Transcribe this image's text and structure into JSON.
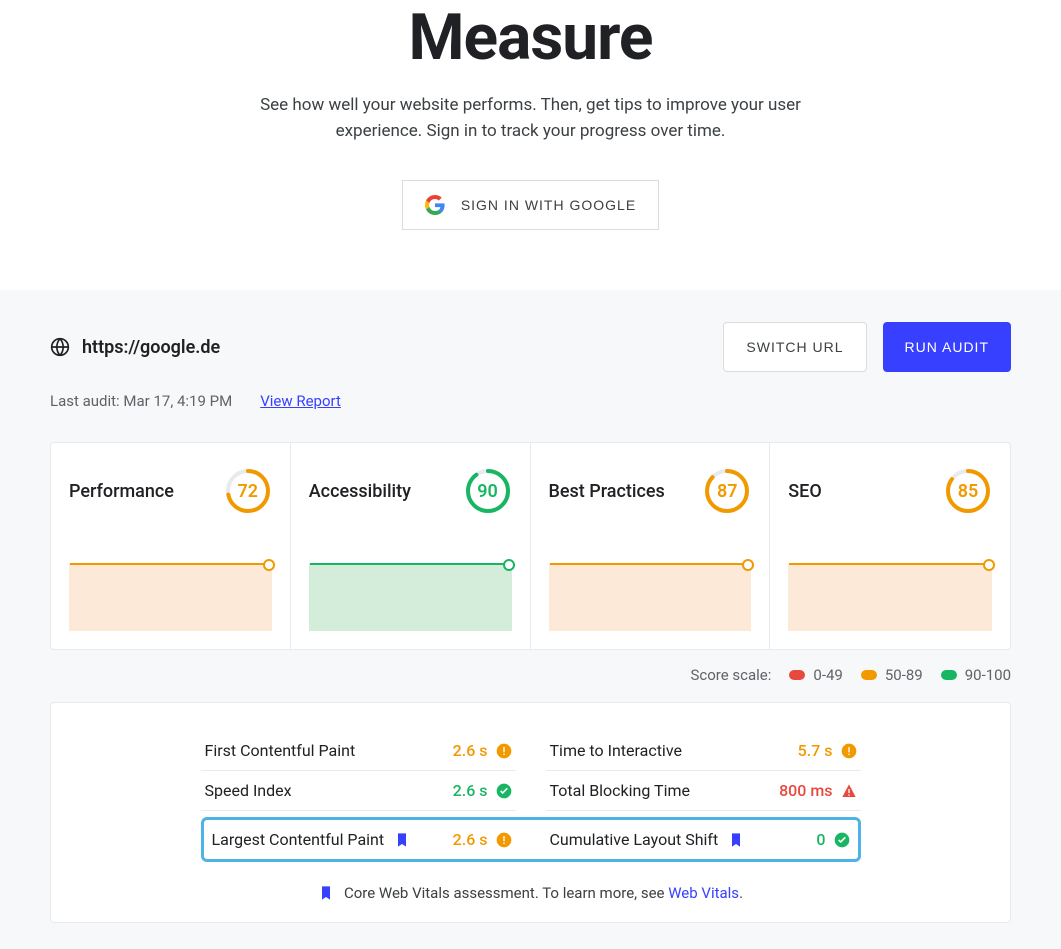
{
  "hero": {
    "title": "Measure",
    "subtitle": "See how well your website performs. Then, get tips to improve your user experience. Sign in to track your progress over time.",
    "signin_label": "SIGN IN WITH GOOGLE"
  },
  "audit": {
    "url": "https://google.de",
    "last_audit_label": "Last audit: Mar 17, 4:19 PM",
    "view_report_label": "View Report",
    "switch_url_label": "SWITCH URL",
    "run_audit_label": "RUN AUDIT"
  },
  "scores": [
    {
      "name": "Performance",
      "value": 72,
      "color": "#f29900",
      "spark": "orange"
    },
    {
      "name": "Accessibility",
      "value": 90,
      "color": "#18b663",
      "spark": "green"
    },
    {
      "name": "Best Practices",
      "value": 87,
      "color": "#f29900",
      "spark": "orange"
    },
    {
      "name": "SEO",
      "value": 85,
      "color": "#f29900",
      "spark": "orange"
    }
  ],
  "scale": {
    "label": "Score scale:",
    "buckets": [
      {
        "range": "0-49",
        "color": "#e8493e"
      },
      {
        "range": "50-89",
        "color": "#f29900"
      },
      {
        "range": "90-100",
        "color": "#18b663"
      }
    ]
  },
  "metrics": {
    "rows": [
      {
        "name": "First Contentful Paint",
        "value": "2.6 s",
        "color": "#f29900",
        "icon": "warn",
        "bookmark": false
      },
      {
        "name": "Time to Interactive",
        "value": "5.7 s",
        "color": "#f29900",
        "icon": "warn",
        "bookmark": false
      },
      {
        "name": "Speed Index",
        "value": "2.6 s",
        "color": "#18b663",
        "icon": "check",
        "bookmark": false
      },
      {
        "name": "Total Blocking Time",
        "value": "800 ms",
        "color": "#e8493e",
        "icon": "alert",
        "bookmark": false
      }
    ],
    "highlight": [
      {
        "name": "Largest Contentful Paint",
        "value": "2.6 s",
        "color": "#f29900",
        "icon": "warn",
        "bookmark": true
      },
      {
        "name": "Cumulative Layout Shift",
        "value": "0",
        "color": "#18b663",
        "icon": "check",
        "bookmark": true
      }
    ],
    "footnote_text": "Core Web Vitals assessment. To learn more, see ",
    "footnote_link": "Web Vitals",
    "footnote_period": "."
  },
  "colors": {
    "primary": "#3740ff",
    "bg_dashboard": "#f7f8f9",
    "border": "#e8eaed",
    "highlight_border": "#4fb3e8"
  }
}
